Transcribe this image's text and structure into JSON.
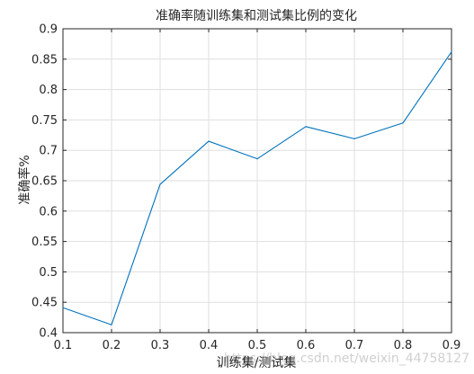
{
  "chart_data": {
    "type": "line",
    "title": "准确率随训练集和测试集比例的变化",
    "xlabel": "训练集/测试集",
    "ylabel": "准确率%",
    "xlim": [
      0.1,
      0.9
    ],
    "ylim": [
      0.4,
      0.9
    ],
    "x_ticks": [
      "0.1",
      "0.2",
      "0.3",
      "0.4",
      "0.5",
      "0.6",
      "0.7",
      "0.8",
      "0.9"
    ],
    "y_ticks": [
      "0.4",
      "0.45",
      "0.5",
      "0.55",
      "0.6",
      "0.65",
      "0.7",
      "0.75",
      "0.8",
      "0.85",
      "0.9"
    ],
    "grid": true,
    "series": [
      {
        "x": [
          0.1,
          0.2,
          0.3,
          0.4,
          0.5,
          0.6,
          0.7,
          0.8,
          0.9
        ],
        "y": [
          0.441,
          0.413,
          0.644,
          0.715,
          0.686,
          0.739,
          0.719,
          0.745,
          0.862
        ],
        "color": "#0072bd"
      }
    ]
  },
  "watermark": "https://blog.csdn.net/weixin_44758127"
}
